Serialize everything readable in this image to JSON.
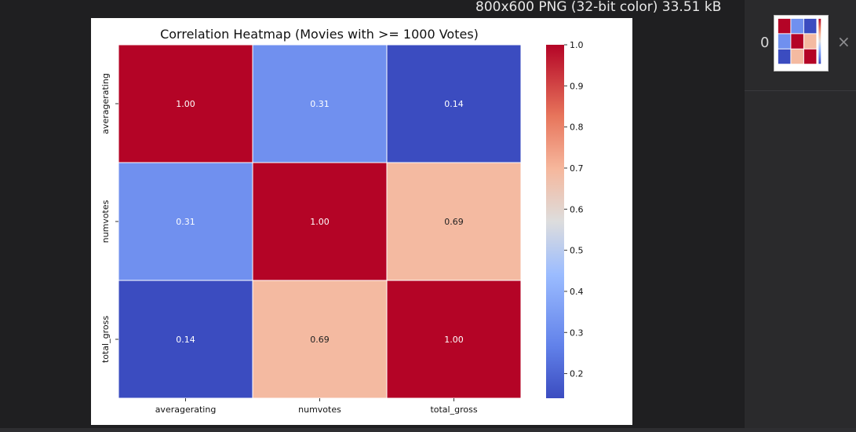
{
  "viewer": {
    "image_info": "800x600 PNG (32-bit color) 33.51 kB"
  },
  "thumbnails": [
    {
      "index": "0",
      "close_glyph": "×"
    }
  ],
  "colors": {
    "low": "#3b4cc0",
    "mid": "#dddddd",
    "high": "#b40426",
    "cell_border": "#ffffff"
  },
  "chart_data": {
    "type": "heatmap",
    "title": "Correlation Heatmap (Movies with >= 1000 Votes)",
    "row_labels": [
      "averagerating",
      "numvotes",
      "total_gross"
    ],
    "col_labels": [
      "averagerating",
      "numvotes",
      "total_gross"
    ],
    "values": [
      [
        1.0,
        0.31,
        0.14
      ],
      [
        0.31,
        1.0,
        0.69
      ],
      [
        0.14,
        0.69,
        1.0
      ]
    ],
    "cell_labels": [
      [
        "1.00",
        "0.31",
        "0.14"
      ],
      [
        "0.31",
        "1.00",
        "0.69"
      ],
      [
        "0.14",
        "0.69",
        "1.00"
      ]
    ],
    "colormap": "coolwarm",
    "vmin": 0.14,
    "vmax": 1.0,
    "colorbar_ticks": [
      "1.0",
      "0.9",
      "0.8",
      "0.7",
      "0.6",
      "0.5",
      "0.4",
      "0.3",
      "0.2"
    ]
  }
}
